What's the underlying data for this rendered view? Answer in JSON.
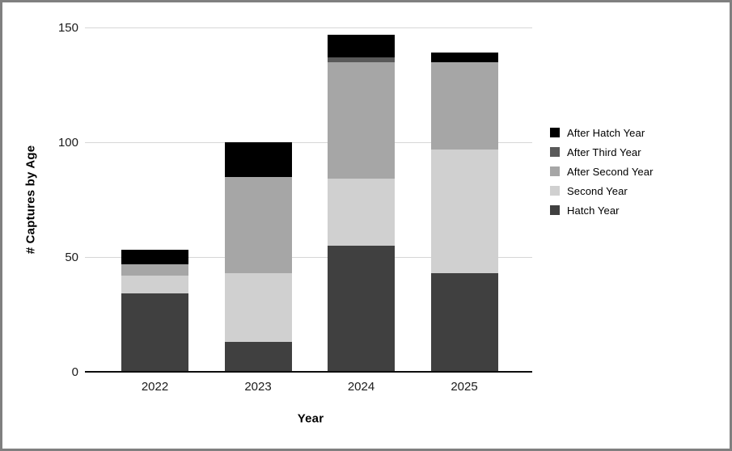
{
  "window": {
    "background": "#ffffff",
    "frame_border_color": "#808080"
  },
  "chart_data": {
    "type": "bar",
    "stacked": true,
    "title": "",
    "xlabel": "Year",
    "ylabel": "# Captures by Age",
    "categories": [
      "2022",
      "2023",
      "2024",
      "2025"
    ],
    "series": [
      {
        "name": "Hatch Year",
        "color": "#404040",
        "values": [
          34,
          13,
          55,
          43
        ]
      },
      {
        "name": "Second Year",
        "color": "#d0d0d0",
        "values": [
          8,
          30,
          29,
          54
        ]
      },
      {
        "name": "After Second Year",
        "color": "#a6a6a6",
        "values": [
          5,
          42,
          51,
          38
        ]
      },
      {
        "name": "After Third Year",
        "color": "#595959",
        "values": [
          0,
          0,
          2,
          0
        ]
      },
      {
        "name": "After Hatch Year",
        "color": "#000000",
        "values": [
          6,
          15,
          10,
          4
        ]
      }
    ],
    "stack_totals": [
      53,
      100,
      147,
      139
    ],
    "ylim": [
      0,
      150
    ],
    "yticks": [
      0,
      50,
      100,
      150
    ],
    "grid": "horizontal",
    "gridline_color": "#d6d6d6",
    "axis_line_color": "#0d0d0d",
    "tick_text_color": "#1a1a1a",
    "legend_position": "right",
    "legend_order_top_to_bottom": [
      "After Hatch Year",
      "After Third Year",
      "After Second Year",
      "Second Year",
      "Hatch Year"
    ]
  }
}
